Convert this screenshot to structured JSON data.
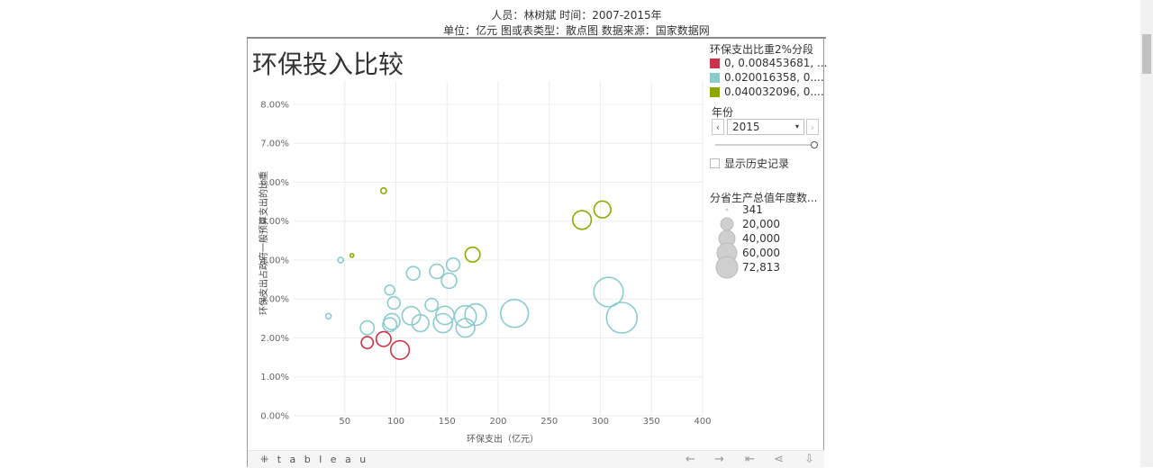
{
  "header": {
    "line1": "人员：林树斌 时间：2007-2015年",
    "line2": "单位：亿元 图或表类型：散点图 数据来源：国家数据网"
  },
  "title": "环保投入比较",
  "legend": {
    "title": "环保支出比重2%分段",
    "items": [
      {
        "label": "0, 0.008453681, ...",
        "color": "#c8354a"
      },
      {
        "label": "0.020016358, 0....",
        "color": "#8ccbcc"
      },
      {
        "label": "0.040032096, 0....",
        "color": "#8fa800"
      }
    ]
  },
  "year_filter": {
    "title": "年份",
    "value": "2015",
    "prev": "‹",
    "next": "›",
    "caret": "▾",
    "show_history": "显示历史记录"
  },
  "size_legend": {
    "title": "分省生产总值年度数...",
    "items": [
      {
        "label": "341",
        "size": 341
      },
      {
        "label": "20,000",
        "size": 20000
      },
      {
        "label": "40,000",
        "size": 40000
      },
      {
        "label": "60,000",
        "size": 60000
      },
      {
        "label": "72,813",
        "size": 72813
      }
    ]
  },
  "toolbar": {
    "logo": "⁜ t a b l e a u",
    "undo": "←",
    "redo": "→",
    "revert": "⇤",
    "share": "⋖",
    "download": "⇩"
  },
  "chart_data": {
    "type": "scatter",
    "xlabel": "环保支出（亿元）",
    "ylabel": "环保支出占政府一般预算支出的比重",
    "xlim": [
      0,
      400
    ],
    "ylim": [
      0,
      0.086
    ],
    "x_ticks": [
      "50",
      "100",
      "150",
      "200",
      "250",
      "300",
      "350",
      "400"
    ],
    "x_tick_values": [
      50,
      100,
      150,
      200,
      250,
      300,
      350,
      400
    ],
    "y_ticks": [
      "0.00%",
      "1.00%",
      "2.00%",
      "3.00%",
      "4.00%",
      "5.00%",
      "6.00%",
      "7.00%",
      "8.00%"
    ],
    "y_tick_values": [
      0,
      0.01,
      0.02,
      0.03,
      0.04,
      0.05,
      0.06,
      0.07,
      0.08
    ],
    "grid": true,
    "points": [
      {
        "x": 88,
        "y": 0.0578,
        "g": 2,
        "size": 2500
      },
      {
        "x": 57,
        "y": 0.0412,
        "g": 2,
        "size": 700
      },
      {
        "x": 175,
        "y": 0.0414,
        "g": 2,
        "size": 17000
      },
      {
        "x": 282,
        "y": 0.0503,
        "g": 2,
        "size": 27000
      },
      {
        "x": 302,
        "y": 0.053,
        "g": 2,
        "size": 22000
      },
      {
        "x": 46,
        "y": 0.04,
        "g": 1,
        "size": 2300
      },
      {
        "x": 34,
        "y": 0.0256,
        "g": 1,
        "size": 2300
      },
      {
        "x": 72,
        "y": 0.0226,
        "g": 1,
        "size": 15000
      },
      {
        "x": 94,
        "y": 0.0323,
        "g": 1,
        "size": 7500
      },
      {
        "x": 98,
        "y": 0.029,
        "g": 1,
        "size": 12000
      },
      {
        "x": 96,
        "y": 0.0242,
        "g": 1,
        "size": 20000
      },
      {
        "x": 94,
        "y": 0.0234,
        "g": 1,
        "size": 15000
      },
      {
        "x": 115,
        "y": 0.0257,
        "g": 1,
        "size": 26000
      },
      {
        "x": 117,
        "y": 0.0366,
        "g": 1,
        "size": 14000
      },
      {
        "x": 124,
        "y": 0.0238,
        "g": 1,
        "size": 22000
      },
      {
        "x": 135,
        "y": 0.0285,
        "g": 1,
        "size": 13000
      },
      {
        "x": 140,
        "y": 0.0371,
        "g": 1,
        "size": 16000
      },
      {
        "x": 146,
        "y": 0.0238,
        "g": 1,
        "size": 28000
      },
      {
        "x": 148,
        "y": 0.0258,
        "g": 1,
        "size": 26000
      },
      {
        "x": 152,
        "y": 0.0347,
        "g": 1,
        "size": 18000
      },
      {
        "x": 156,
        "y": 0.0388,
        "g": 1,
        "size": 14000
      },
      {
        "x": 168,
        "y": 0.0255,
        "g": 1,
        "size": 37000
      },
      {
        "x": 168,
        "y": 0.0226,
        "g": 1,
        "size": 27000
      },
      {
        "x": 178,
        "y": 0.026,
        "g": 1,
        "size": 36000
      },
      {
        "x": 216,
        "y": 0.0263,
        "g": 1,
        "size": 60000
      },
      {
        "x": 308,
        "y": 0.0318,
        "g": 1,
        "size": 67000
      },
      {
        "x": 321,
        "y": 0.0252,
        "g": 1,
        "size": 72813
      },
      {
        "x": 72,
        "y": 0.0188,
        "g": 0,
        "size": 11000
      },
      {
        "x": 88,
        "y": 0.0197,
        "g": 0,
        "size": 17000
      },
      {
        "x": 104,
        "y": 0.0169,
        "g": 0,
        "size": 27000
      }
    ]
  }
}
